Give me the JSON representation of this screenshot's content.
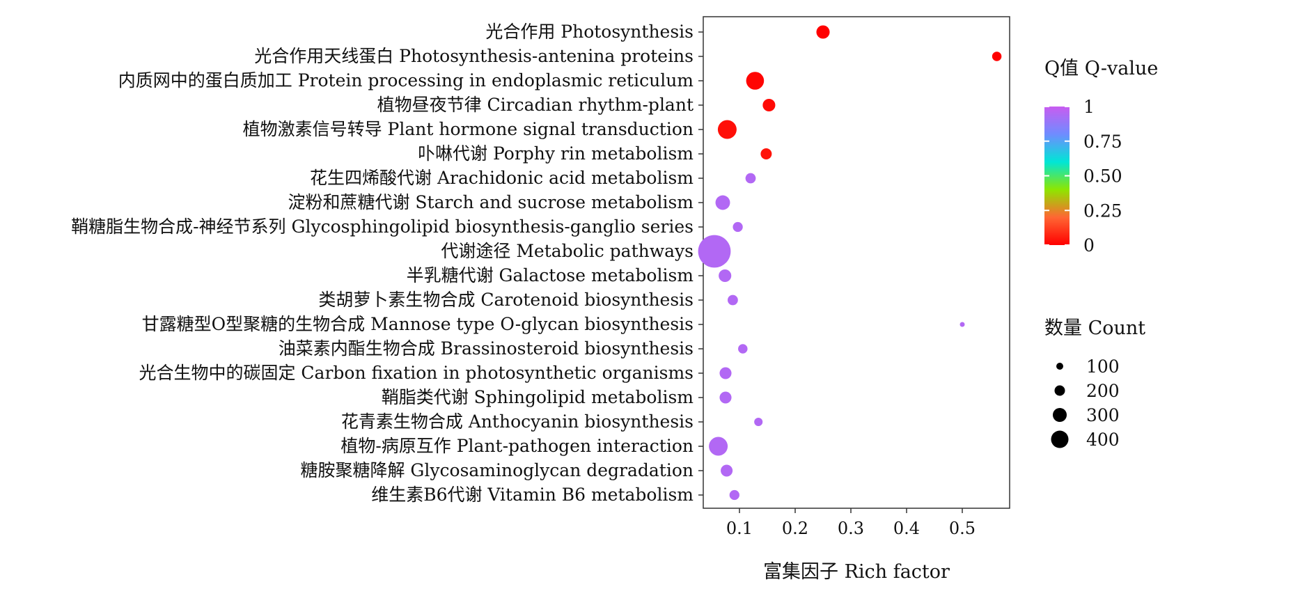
{
  "chart_data": {
    "type": "scatter",
    "title": "",
    "xlabel": "富集因子 Rich factor",
    "ylabel": "",
    "xlim": [
      0.035,
      0.585
    ],
    "x_ticks": [
      {
        "value": 0.1,
        "label": "0.1"
      },
      {
        "value": 0.2,
        "label": "0.2"
      },
      {
        "value": 0.3,
        "label": "0.3"
      },
      {
        "value": 0.4,
        "label": "0.4"
      },
      {
        "value": 0.5,
        "label": "0.5"
      }
    ],
    "grid": false,
    "legend_position": "right",
    "points": [
      {
        "label": "光合作用 Photosynthesis",
        "x": 0.25,
        "count": 50,
        "q": 0.0
      },
      {
        "label": "光合作用天线蛋白 Photosynthesis-antenina proteins",
        "x": 0.562,
        "count": 25,
        "q": 0.0
      },
      {
        "label": "内质网中的蛋白质加工 Protein processing in endoplasmic reticulum",
        "x": 0.128,
        "count": 90,
        "q": 0.01
      },
      {
        "label": "植物昼夜节律 Circadian rhythm-plant",
        "x": 0.153,
        "count": 45,
        "q": 0.02
      },
      {
        "label": "植物激素信号转导 Plant hormone signal transduction",
        "x": 0.078,
        "count": 100,
        "q": 0.03
      },
      {
        "label": "卟啉代谢 Porphy rin metabolism",
        "x": 0.148,
        "count": 35,
        "q": 0.04
      },
      {
        "label": "花生四烯酸代谢 Arachidonic acid metabolism",
        "x": 0.12,
        "count": 30,
        "q": 0.95
      },
      {
        "label": "淀粉和蔗糖代谢 Starch and sucrose metabolism",
        "x": 0.07,
        "count": 60,
        "q": 0.95
      },
      {
        "label": "鞘糖脂生物合成-神经节系列 Glycosphingolipid biosynthesis-ganglio series",
        "x": 0.097,
        "count": 28,
        "q": 0.95
      },
      {
        "label": "代谢途径 Metabolic pathways",
        "x": 0.055,
        "count": 300,
        "q": 0.95
      },
      {
        "label": "半乳糖代谢 Galactose metabolism",
        "x": 0.074,
        "count": 45,
        "q": 0.95
      },
      {
        "label": "类胡萝卜素生物合成 Carotenoid biosynthesis",
        "x": 0.088,
        "count": 30,
        "q": 0.95
      },
      {
        "label": "甘露糖型O型聚糖的生物合成 Mannose type O-glycan biosynthesis",
        "x": 0.5,
        "count": 5,
        "q": 0.95
      },
      {
        "label": "油菜素内酯生物合成 Brassinosteroid biosynthesis",
        "x": 0.106,
        "count": 25,
        "q": 0.95
      },
      {
        "label": "光合生物中的碳固定 Carbon fixation in photosynthetic organisms",
        "x": 0.075,
        "count": 40,
        "q": 0.95
      },
      {
        "label": "鞘脂类代谢 Sphingolipid metabolism",
        "x": 0.075,
        "count": 40,
        "q": 0.95
      },
      {
        "label": "花青素生物合成 Anthocyanin biosynthesis",
        "x": 0.134,
        "count": 20,
        "q": 0.95
      },
      {
        "label": "植物-病原互作 Plant-pathogen interaction",
        "x": 0.062,
        "count": 100,
        "q": 0.95
      },
      {
        "label": "糖胺聚糖降解 Glycosaminoglycan degradation",
        "x": 0.077,
        "count": 40,
        "q": 0.95
      },
      {
        "label": "维生素B6代谢 Vitamin B6 metabolism",
        "x": 0.091,
        "count": 28,
        "q": 0.95
      }
    ],
    "color_legend": {
      "title": "Q值 Q-value",
      "ticks": [
        {
          "value": 1,
          "label": "1"
        },
        {
          "value": 0.75,
          "label": "0.75"
        },
        {
          "value": 0.5,
          "label": "0.50"
        },
        {
          "value": 0.25,
          "label": "0.25"
        },
        {
          "value": 0,
          "label": "0"
        }
      ],
      "gradient_colors": [
        "#ff0000",
        "#ff6633",
        "#8ee600",
        "#00e6d6",
        "#6f8cff",
        "#c85cf0"
      ]
    },
    "size_legend": {
      "title": "数量 Count",
      "items": [
        {
          "value": 100,
          "label": "100"
        },
        {
          "value": 200,
          "label": "200"
        },
        {
          "value": 300,
          "label": "300"
        },
        {
          "value": 400,
          "label": "400"
        }
      ]
    }
  }
}
